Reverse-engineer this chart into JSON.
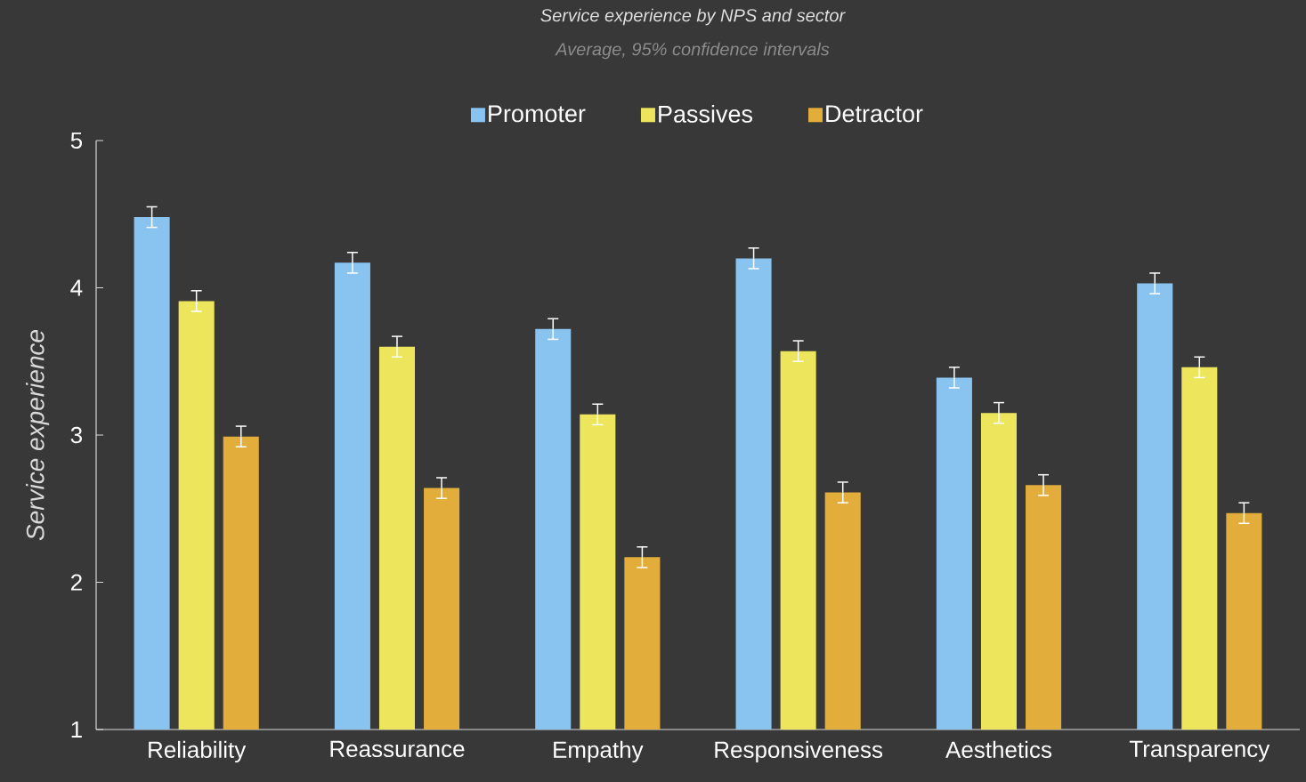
{
  "chart_data": {
    "type": "bar",
    "title": "Service experience by NPS and sector",
    "subtitle": "Average, 95% confidence intervals",
    "ylabel": "Service experience",
    "categories": [
      "Reliability",
      "Reassurance",
      "Empathy",
      "Responsiveness",
      "Aesthetics",
      "Transparency"
    ],
    "series": [
      {
        "name": "Promoter",
        "color": "#89c4f0",
        "values": [
          4.48,
          4.17,
          3.72,
          4.2,
          3.39,
          4.03
        ],
        "errors": [
          0.07,
          0.07,
          0.07,
          0.07,
          0.07,
          0.07
        ]
      },
      {
        "name": "Passives",
        "color": "#ede65c",
        "values": [
          3.91,
          3.6,
          3.14,
          3.57,
          3.15,
          3.46
        ],
        "errors": [
          0.07,
          0.07,
          0.07,
          0.07,
          0.07,
          0.07
        ]
      },
      {
        "name": "Detractor",
        "color": "#e3ad3b",
        "values": [
          2.99,
          2.64,
          2.17,
          2.61,
          2.66,
          2.47
        ],
        "errors": [
          0.07,
          0.07,
          0.07,
          0.07,
          0.07,
          0.07
        ]
      }
    ],
    "ylim": [
      1,
      5
    ],
    "yticks": [
      1,
      2,
      3,
      4,
      5
    ],
    "legend": "top",
    "grid": false
  }
}
